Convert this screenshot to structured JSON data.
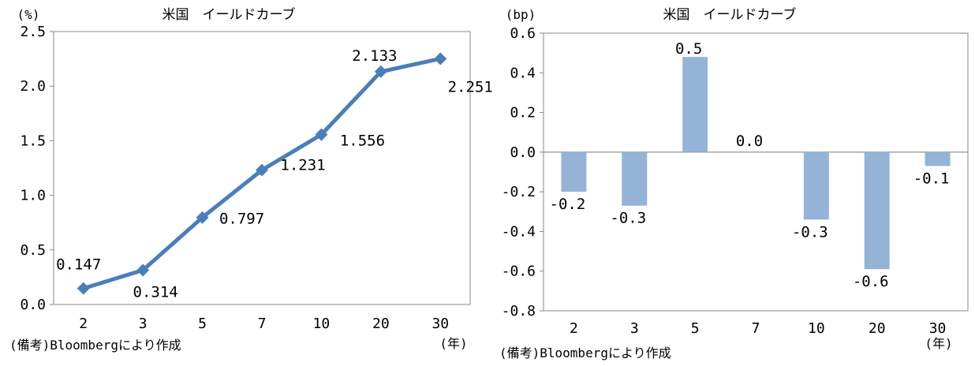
{
  "chart_data": [
    {
      "type": "line",
      "title": "米国　イールドカーブ",
      "yunit": "(%)",
      "xunit": "(年)",
      "note": "(備考)Bloombergにより作成",
      "categories": [
        "2",
        "3",
        "5",
        "7",
        "10",
        "20",
        "30"
      ],
      "values": [
        0.147,
        0.314,
        0.797,
        1.231,
        1.556,
        2.133,
        2.251
      ],
      "value_labels": [
        "0.147",
        "0.314",
        "0.797",
        "1.231",
        "1.556",
        "2.133",
        "2.251"
      ],
      "ylim": [
        0.0,
        2.5
      ],
      "yticks": [
        "0.0",
        "0.5",
        "1.0",
        "1.5",
        "2.0",
        "2.5"
      ],
      "color": "#4a7ebb"
    },
    {
      "type": "bar",
      "title": "米国　イールドカーブ",
      "yunit": "(bp)",
      "xunit": "(年)",
      "note": "(備考)Bloombergにより作成",
      "categories": [
        "2",
        "3",
        "5",
        "7",
        "10",
        "20",
        "30"
      ],
      "values": [
        -0.2,
        -0.27,
        0.48,
        0.0,
        -0.34,
        -0.59,
        -0.07
      ],
      "value_labels": [
        "-0.2",
        "-0.3",
        "0.5",
        "0.0",
        "-0.3",
        "-0.6",
        "-0.1"
      ],
      "ylim": [
        -0.8,
        0.6
      ],
      "yticks": [
        "0.6",
        "0.4",
        "0.2",
        "0.0",
        "-0.2",
        "-0.4",
        "-0.6",
        "-0.8"
      ],
      "color": "#95b3d7"
    }
  ]
}
